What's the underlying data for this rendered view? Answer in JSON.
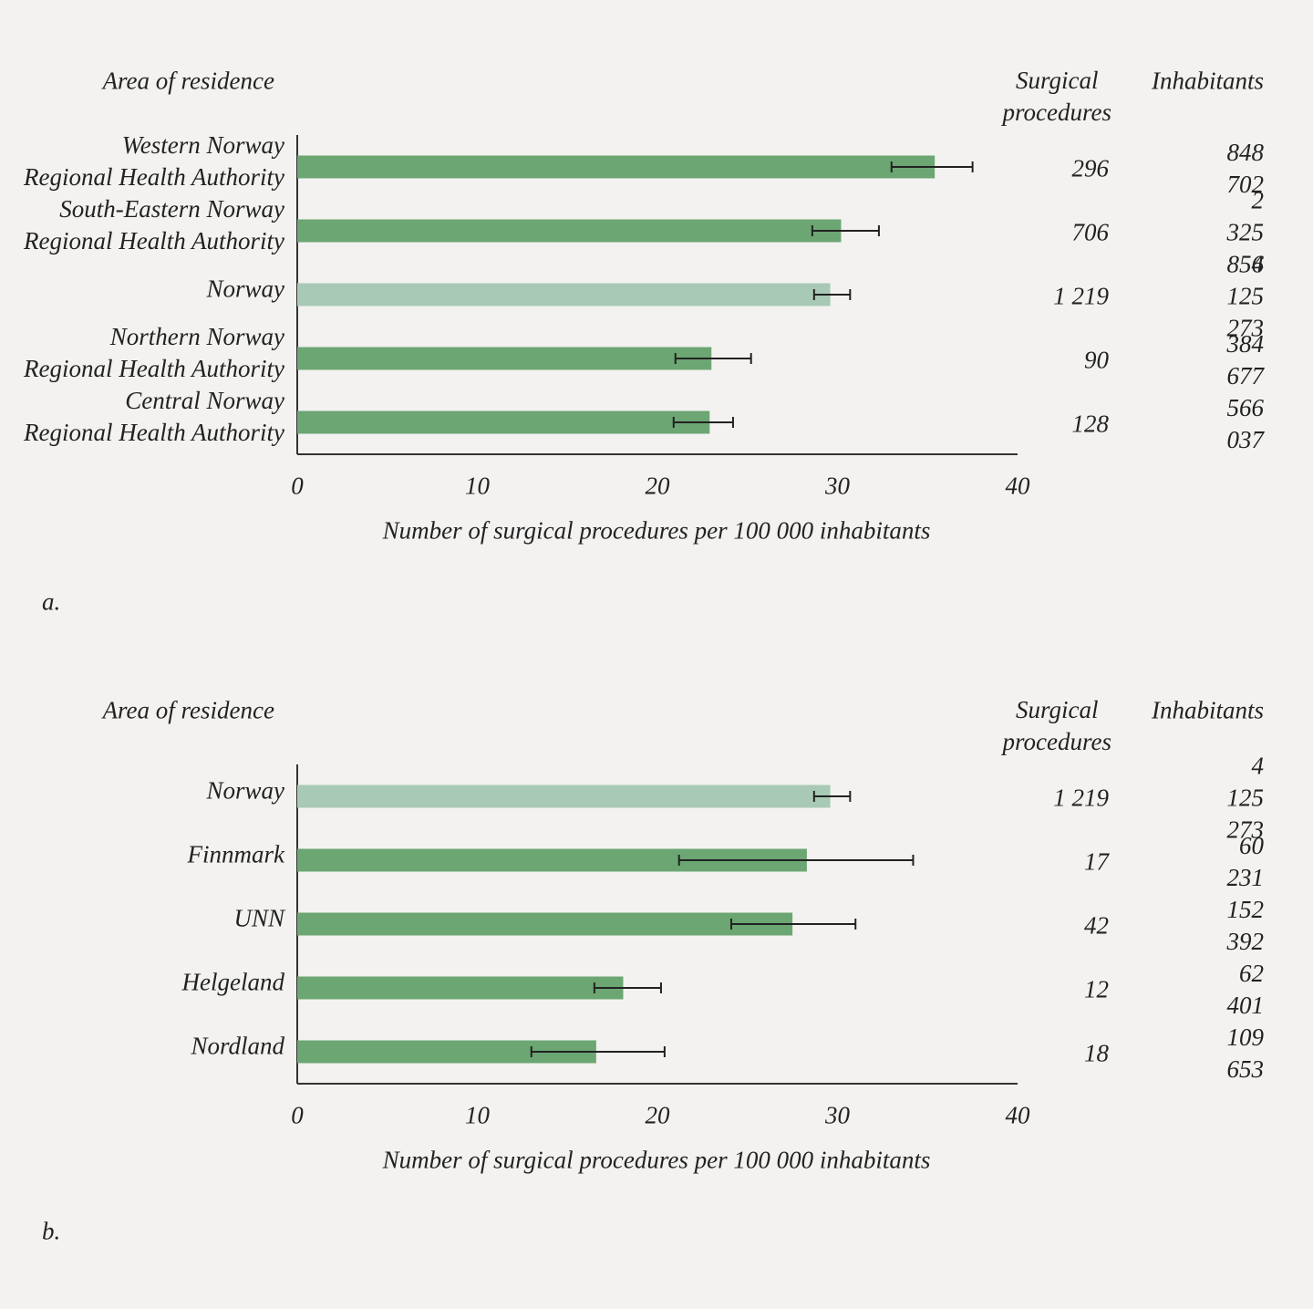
{
  "chart_data": [
    {
      "type": "bar",
      "orientation": "horizontal",
      "category_header": "Area of residence",
      "categories": [
        "Western Norway\nRegional Health Authority",
        "South-Eastern Norway\nRegional Health Authority",
        "Norway",
        "Northern Norway\nRegional Health Authority",
        "Central Norway\nRegional Health Authority"
      ],
      "values": [
        35.4,
        30.2,
        29.6,
        23.0,
        22.9
      ],
      "ci_low": [
        33.0,
        28.6,
        28.7,
        21.0,
        20.9
      ],
      "ci_high": [
        37.5,
        32.3,
        30.7,
        25.2,
        24.2
      ],
      "colors": [
        "#6ca673",
        "#6ca673",
        "#a8c9b5",
        "#6ca673",
        "#6ca673"
      ],
      "xlim": [
        0,
        40
      ],
      "xticks": [
        0,
        10,
        20,
        30,
        40
      ],
      "x_label": "Number of surgical procedures per 100 000 inhabitants",
      "table": {
        "columns": [
          "Surgical\nprocedures",
          "Inhabitants"
        ],
        "rows": [
          [
            "296",
            "848 702"
          ],
          [
            "706",
            "2 325 856"
          ],
          [
            "1 219",
            "4 125 273"
          ],
          [
            "90",
            "384 677"
          ],
          [
            "128",
            "566 037"
          ]
        ]
      },
      "panel_label": "a."
    },
    {
      "type": "bar",
      "orientation": "horizontal",
      "category_header": "Area of residence",
      "categories": [
        "Norway",
        "Finnmark",
        "UNN",
        "Helgeland",
        "Nordland"
      ],
      "values": [
        29.6,
        28.3,
        27.5,
        18.1,
        16.6
      ],
      "ci_low": [
        28.7,
        21.2,
        24.1,
        16.5,
        13.0
      ],
      "ci_high": [
        30.7,
        34.2,
        31.0,
        20.2,
        20.4
      ],
      "colors": [
        "#a8c9b5",
        "#6ca673",
        "#6ca673",
        "#6ca673",
        "#6ca673"
      ],
      "xlim": [
        0,
        40
      ],
      "xticks": [
        0,
        10,
        20,
        30,
        40
      ],
      "x_label": "Number of surgical procedures per 100 000 inhabitants",
      "table": {
        "columns": [
          "Surgical\nprocedures",
          "Inhabitants"
        ],
        "rows": [
          [
            "1 219",
            "4 125 273"
          ],
          [
            "17",
            "60 231"
          ],
          [
            "42",
            "152 392"
          ],
          [
            "12",
            "62 401"
          ],
          [
            "18",
            "109 653"
          ]
        ]
      },
      "panel_label": "b."
    }
  ]
}
